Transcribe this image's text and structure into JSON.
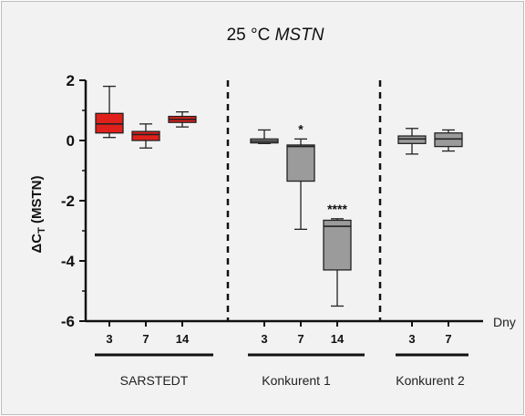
{
  "chart_data": {
    "type": "box",
    "title": "25 °C",
    "title_italic": "MSTN",
    "ylabel": "ΔC",
    "ylabel_sub": "T",
    "ylabel_suffix": " (MSTN)",
    "xlabel": "Dny",
    "ylim": [
      -6,
      2
    ],
    "yticks": [
      "2",
      "0",
      "-2",
      "-4",
      "-6"
    ],
    "groups": [
      {
        "name": "SARSTEDT",
        "color": "#e0201b",
        "label_color": "#e0201b"
      },
      {
        "name": "Konkurent 1",
        "color": "#9b9b9b",
        "label_color": "#222222"
      },
      {
        "name": "Konkurent 2",
        "color": "#9b9b9b",
        "label_color": "#222222"
      }
    ],
    "boxes": [
      {
        "group": 0,
        "day": "3",
        "min": 0.1,
        "q1": 0.25,
        "median": 0.55,
        "q3": 0.9,
        "max": 1.8,
        "sig": ""
      },
      {
        "group": 0,
        "day": "7",
        "min": -0.25,
        "q1": 0.0,
        "median": 0.2,
        "q3": 0.3,
        "max": 0.55,
        "sig": ""
      },
      {
        "group": 0,
        "day": "14",
        "min": 0.45,
        "q1": 0.6,
        "median": 0.7,
        "q3": 0.8,
        "max": 0.95,
        "sig": ""
      },
      {
        "group": 1,
        "day": "3",
        "min": -0.1,
        "q1": -0.08,
        "median": -0.02,
        "q3": 0.05,
        "max": 0.35,
        "sig": ""
      },
      {
        "group": 1,
        "day": "7",
        "min": -2.95,
        "q1": -1.35,
        "median": -0.2,
        "q3": -0.15,
        "max": 0.05,
        "sig": "*"
      },
      {
        "group": 1,
        "day": "14",
        "min": -5.5,
        "q1": -4.3,
        "median": -2.85,
        "q3": -2.65,
        "max": -2.6,
        "sig": "****"
      },
      {
        "group": 2,
        "day": "3",
        "min": -0.45,
        "q1": -0.1,
        "median": 0.05,
        "q3": 0.15,
        "max": 0.4,
        "sig": ""
      },
      {
        "group": 2,
        "day": "7",
        "min": -0.35,
        "q1": -0.2,
        "median": 0.05,
        "q3": 0.25,
        "max": 0.35,
        "sig": ""
      }
    ]
  }
}
